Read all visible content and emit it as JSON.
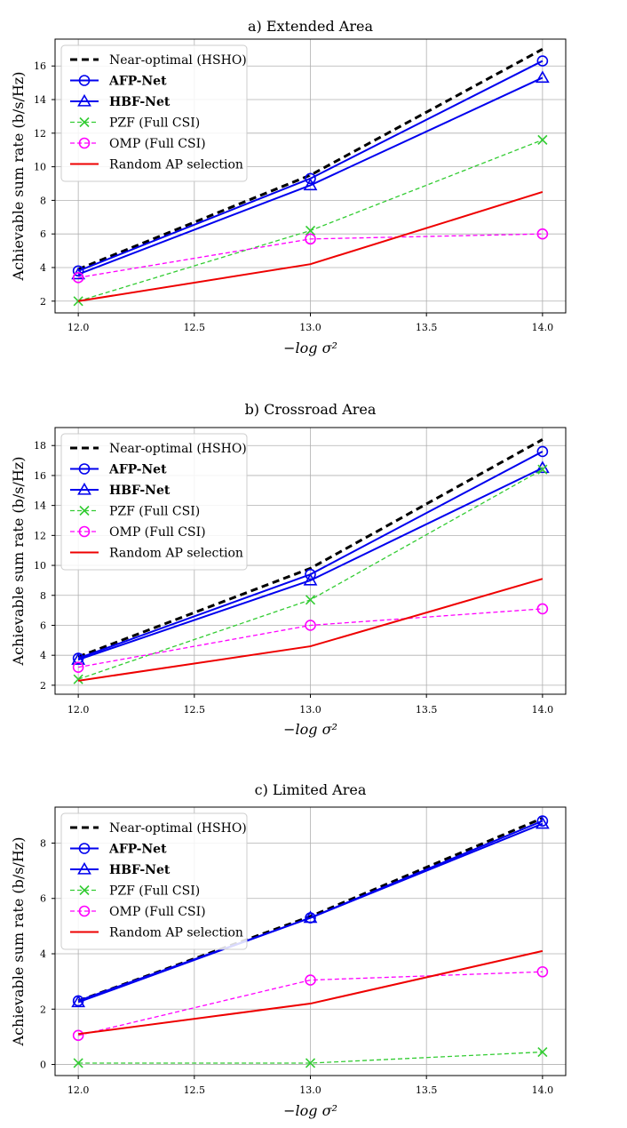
{
  "series_styles": [
    {
      "name": "Near-optimal (HSHO)",
      "color": "#000000",
      "dash": "8,5",
      "width": 3,
      "marker": "none",
      "bold": false
    },
    {
      "name": "AFP-Net",
      "color": "#0000ee",
      "dash": "",
      "width": 2,
      "marker": "circle",
      "bold": true
    },
    {
      "name": "HBF-Net",
      "color": "#0000ee",
      "dash": "",
      "width": 2,
      "marker": "triangle",
      "bold": true
    },
    {
      "name": "PZF (Full CSI)",
      "color": "#33cc33",
      "dash": "5,3",
      "width": 1.3,
      "marker": "x",
      "bold": false
    },
    {
      "name": "OMP (Full CSI)",
      "color": "#ff00ff",
      "dash": "5,3",
      "width": 1.3,
      "marker": "circle",
      "bold": false
    },
    {
      "name": "Random AP selection",
      "color": "#ee0000",
      "dash": "",
      "width": 2,
      "marker": "none",
      "bold": false
    }
  ],
  "chart_data": [
    {
      "type": "line",
      "title": "a) Extended Area",
      "xlabel": "−log σ²",
      "ylabel": "Achievable sum rate (b/s/Hz)",
      "x": [
        12.0,
        13.0,
        14.0
      ],
      "xticks": [
        "12.0",
        "12.5",
        "13.0",
        "13.5",
        "14.0"
      ],
      "xlim": [
        11.9,
        14.1
      ],
      "yticks": [
        2,
        4,
        6,
        8,
        10,
        12,
        14,
        16
      ],
      "ylim": [
        1.3,
        17.6
      ],
      "grid": true,
      "legend": "top-left",
      "series": [
        {
          "name": "Near-optimal (HSHO)",
          "values": [
            3.9,
            9.5,
            17.0
          ]
        },
        {
          "name": "AFP-Net",
          "values": [
            3.8,
            9.3,
            16.3
          ]
        },
        {
          "name": "HBF-Net",
          "values": [
            3.6,
            8.9,
            15.3
          ]
        },
        {
          "name": "PZF (Full CSI)",
          "values": [
            2.0,
            6.2,
            11.6
          ]
        },
        {
          "name": "OMP (Full CSI)",
          "values": [
            3.4,
            5.7,
            6.0
          ]
        },
        {
          "name": "Random AP selection",
          "values": [
            2.0,
            4.2,
            8.5
          ]
        }
      ]
    },
    {
      "type": "line",
      "title": "b) Crossroad Area",
      "xlabel": "−log σ²",
      "ylabel": "Achievable sum rate (b/s/Hz)",
      "x": [
        12.0,
        13.0,
        14.0
      ],
      "xticks": [
        "12.0",
        "12.5",
        "13.0",
        "13.5",
        "14.0"
      ],
      "xlim": [
        11.9,
        14.1
      ],
      "yticks": [
        2,
        4,
        6,
        8,
        10,
        12,
        14,
        16,
        18
      ],
      "ylim": [
        1.4,
        19.2
      ],
      "grid": true,
      "legend": "top-left",
      "series": [
        {
          "name": "Near-optimal (HSHO)",
          "values": [
            3.9,
            9.8,
            18.4
          ]
        },
        {
          "name": "AFP-Net",
          "values": [
            3.8,
            9.4,
            17.6
          ]
        },
        {
          "name": "HBF-Net",
          "values": [
            3.7,
            9.0,
            16.5
          ]
        },
        {
          "name": "PZF (Full CSI)",
          "values": [
            2.4,
            7.7,
            16.4
          ]
        },
        {
          "name": "OMP (Full CSI)",
          "values": [
            3.2,
            6.0,
            7.1
          ]
        },
        {
          "name": "Random AP selection",
          "values": [
            2.3,
            4.6,
            9.1
          ]
        }
      ]
    },
    {
      "type": "line",
      "title": "c) Limited Area",
      "xlabel": "−log σ²",
      "ylabel": "Achievable sum rate (b/s/Hz)",
      "x": [
        12.0,
        13.0,
        14.0
      ],
      "xticks": [
        "12.0",
        "12.5",
        "13.0",
        "13.5",
        "14.0"
      ],
      "xlim": [
        11.9,
        14.1
      ],
      "yticks": [
        0,
        2,
        4,
        6,
        8
      ],
      "ylim": [
        -0.4,
        9.3
      ],
      "grid": true,
      "legend": "top-left",
      "series": [
        {
          "name": "Near-optimal (HSHO)",
          "values": [
            2.3,
            5.35,
            8.9
          ]
        },
        {
          "name": "AFP-Net",
          "values": [
            2.3,
            5.3,
            8.8
          ]
        },
        {
          "name": "HBF-Net",
          "values": [
            2.25,
            5.3,
            8.7
          ]
        },
        {
          "name": "PZF (Full CSI)",
          "values": [
            0.05,
            0.05,
            0.45
          ]
        },
        {
          "name": "OMP (Full CSI)",
          "values": [
            1.05,
            3.05,
            3.35
          ]
        },
        {
          "name": "Random AP selection",
          "values": [
            1.1,
            2.2,
            4.1
          ]
        }
      ]
    }
  ]
}
